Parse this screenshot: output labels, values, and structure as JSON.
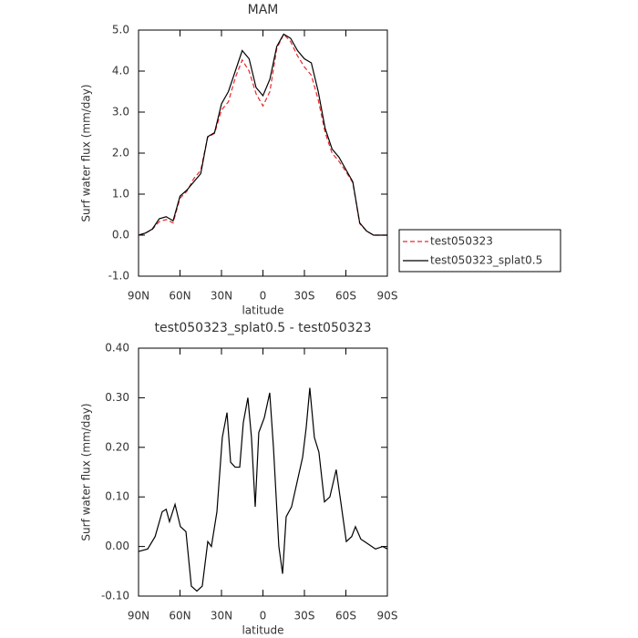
{
  "chart_data": [
    {
      "type": "line",
      "title": "MAM",
      "xlabel": "latitude",
      "ylabel": "Surf water flux (mm/day)",
      "x": [
        90,
        85,
        80,
        75,
        70,
        65,
        60,
        55,
        50,
        45,
        40,
        35,
        30,
        25,
        20,
        15,
        10,
        5,
        0,
        -5,
        -10,
        -15,
        -20,
        -25,
        -30,
        -35,
        -40,
        -45,
        -50,
        -55,
        -60,
        -65,
        -70,
        -75,
        -80,
        -85,
        -90
      ],
      "series": [
        {
          "name": "test050323",
          "color": "#e8272a",
          "dash": true,
          "values": [
            0.0,
            0.05,
            0.14,
            0.33,
            0.38,
            0.3,
            0.9,
            1.07,
            1.38,
            1.58,
            2.39,
            2.48,
            3.05,
            3.25,
            3.84,
            4.27,
            4.0,
            3.45,
            3.15,
            3.5,
            4.55,
            4.9,
            4.72,
            4.37,
            4.1,
            3.9,
            3.3,
            2.5,
            2.0,
            1.8,
            1.55,
            1.28,
            0.28,
            0.1,
            0.0,
            0.0,
            0.0
          ]
        },
        {
          "name": "test050323_splat0.5",
          "color": "#000000",
          "dash": false,
          "values": [
            0.0,
            0.05,
            0.15,
            0.4,
            0.45,
            0.35,
            0.95,
            1.1,
            1.3,
            1.5,
            2.4,
            2.5,
            3.2,
            3.5,
            4.0,
            4.5,
            4.3,
            3.6,
            3.4,
            3.8,
            4.6,
            4.9,
            4.8,
            4.5,
            4.3,
            4.2,
            3.5,
            2.6,
            2.1,
            1.9,
            1.6,
            1.3,
            0.3,
            0.1,
            0.0,
            0.0,
            0.0
          ]
        }
      ],
      "xlim": [
        90,
        -90
      ],
      "xticks": [
        {
          "value": 90,
          "label": "90N"
        },
        {
          "value": 60,
          "label": "60N"
        },
        {
          "value": 30,
          "label": "30N"
        },
        0,
        {
          "value": -30,
          "label": "30S"
        },
        {
          "value": -60,
          "label": "60S"
        },
        {
          "value": -90,
          "label": "90S"
        }
      ],
      "ylim": [
        -1,
        5
      ],
      "yticks": [
        {
          "value": -1,
          "label": "-1.0"
        },
        {
          "value": 0,
          "label": "0.0"
        },
        {
          "value": 1,
          "label": "1.0"
        },
        {
          "value": 2,
          "label": "2.0"
        },
        {
          "value": 3,
          "label": "3.0"
        },
        {
          "value": 4,
          "label": "4.0"
        },
        {
          "value": 5,
          "label": "5.0"
        }
      ],
      "legend": "right"
    },
    {
      "type": "line",
      "title": "test050323_splat0.5 - test050323",
      "xlabel": "latitude",
      "ylabel": "Surf water flux (mm/day)",
      "x": [
        90,
        83.4,
        78,
        72.9,
        70,
        67.6,
        63.6,
        59.7,
        55.7,
        51.8,
        47.8,
        43.9,
        39.9,
        37.3,
        33.3,
        29.4,
        26,
        23.4,
        20.1,
        16.8,
        14.2,
        10.9,
        8.3,
        5.6,
        3,
        -1,
        -4.9,
        -7.6,
        -11.5,
        -14.2,
        -16.8,
        -20.7,
        -24.7,
        -28.7,
        -31.3,
        -33.9,
        -37.2,
        -40.5,
        -44.5,
        -48.4,
        -53,
        -56.3,
        -60.3,
        -64.2,
        -66.9,
        -70.8,
        -76.1,
        -81.4,
        -86.7,
        -90
      ],
      "color": "#000000",
      "values": [
        -0.01,
        -0.005,
        0.02,
        0.07,
        0.075,
        0.05,
        0.085,
        0.04,
        0.03,
        -0.08,
        -0.09,
        -0.08,
        0.01,
        0.0,
        0.07,
        0.22,
        0.27,
        0.17,
        0.16,
        0.16,
        0.25,
        0.3,
        0.22,
        0.08,
        0.23,
        0.26,
        0.31,
        0.2,
        0.0,
        -0.055,
        0.06,
        0.08,
        0.13,
        0.18,
        0.24,
        0.32,
        0.22,
        0.19,
        0.09,
        0.1,
        0.155,
        0.09,
        0.01,
        0.02,
        0.04,
        0.015,
        0.005,
        -0.005,
        0.0,
        -0.005
      ],
      "xlim": [
        90,
        -90
      ],
      "xticks": [
        {
          "value": 90,
          "label": "90N"
        },
        {
          "value": 60,
          "label": "60N"
        },
        {
          "value": 30,
          "label": "30N"
        },
        0,
        {
          "value": -30,
          "label": "30S"
        },
        {
          "value": -60,
          "label": "60S"
        },
        {
          "value": -90,
          "label": "90S"
        }
      ],
      "ylim": [
        -0.1,
        0.4
      ],
      "yticks": [
        {
          "value": -0.1,
          "label": "-0.10"
        },
        {
          "value": 0,
          "label": "0.00"
        },
        {
          "value": 0.1,
          "label": "0.10"
        },
        {
          "value": 0.2,
          "label": "0.20"
        },
        {
          "value": 0.3,
          "label": "0.30"
        },
        {
          "value": 0.4,
          "label": "0.40"
        }
      ]
    }
  ]
}
